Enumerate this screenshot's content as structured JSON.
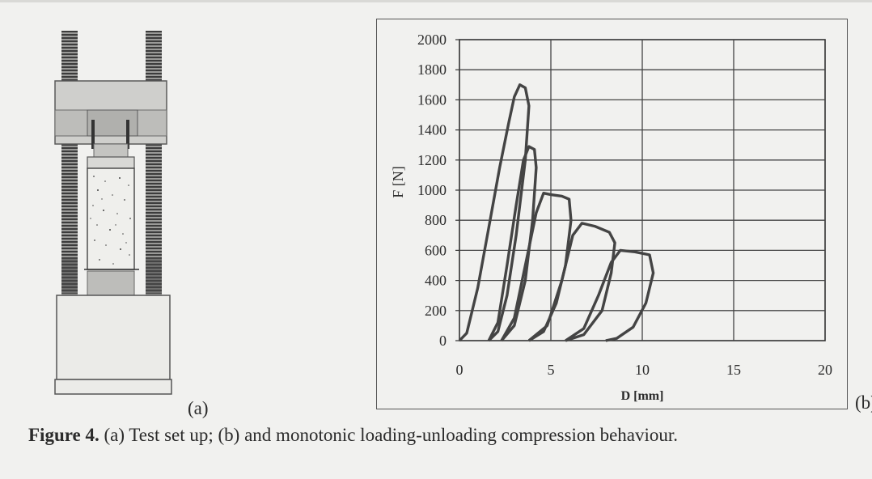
{
  "figure": {
    "panel_a_label": "(a)",
    "panel_b_label": "(b)",
    "caption_lead": "Figure 4.",
    "caption_text": " (a) Test set up; (b) and monotonic loading-unloading compression behaviour."
  },
  "chart_data": {
    "type": "line",
    "title": "",
    "xlabel": "D [mm]",
    "ylabel": "F [N]",
    "xlim": [
      0,
      20
    ],
    "ylim": [
      0,
      2000
    ],
    "xticks": [
      0,
      5,
      10,
      15,
      20
    ],
    "yticks": [
      0,
      200,
      400,
      600,
      800,
      1000,
      1200,
      1400,
      1600,
      1800,
      2000
    ],
    "grid": true,
    "line_color": "#444444",
    "series": [
      {
        "loops": [
          {
            "loading": [
              [
                0,
                0
              ],
              [
                0.4,
                50
              ],
              [
                1.0,
                350
              ],
              [
                1.6,
                750
              ],
              [
                2.2,
                1150
              ],
              [
                2.7,
                1450
              ],
              [
                3.0,
                1620
              ],
              [
                3.3,
                1700
              ],
              [
                3.6,
                1680
              ],
              [
                3.8,
                1560
              ]
            ],
            "unloading": [
              [
                3.8,
                1560
              ],
              [
                3.6,
                1200
              ],
              [
                3.1,
                700
              ],
              [
                2.6,
                300
              ],
              [
                2.1,
                60
              ],
              [
                1.6,
                0
              ]
            ]
          },
          {
            "loading": [
              [
                1.6,
                0
              ],
              [
                2.1,
                120
              ],
              [
                2.6,
                500
              ],
              [
                3.1,
                900
              ],
              [
                3.5,
                1200
              ],
              [
                3.8,
                1290
              ],
              [
                4.1,
                1270
              ],
              [
                4.2,
                1150
              ]
            ],
            "unloading": [
              [
                4.2,
                1150
              ],
              [
                4.0,
                800
              ],
              [
                3.6,
                400
              ],
              [
                3.0,
                100
              ],
              [
                2.3,
                0
              ]
            ]
          },
          {
            "loading": [
              [
                2.3,
                0
              ],
              [
                3.0,
                150
              ],
              [
                3.6,
                500
              ],
              [
                4.2,
                850
              ],
              [
                4.6,
                980
              ],
              [
                5.0,
                970
              ],
              [
                5.6,
                960
              ],
              [
                6.0,
                940
              ],
              [
                6.1,
                800
              ]
            ],
            "unloading": [
              [
                6.1,
                800
              ],
              [
                5.8,
                500
              ],
              [
                5.3,
                250
              ],
              [
                4.6,
                60
              ],
              [
                3.8,
                0
              ]
            ]
          },
          {
            "loading": [
              [
                3.8,
                0
              ],
              [
                4.8,
                100
              ],
              [
                5.6,
                400
              ],
              [
                6.2,
                700
              ],
              [
                6.7,
                780
              ],
              [
                7.4,
                760
              ],
              [
                8.2,
                720
              ],
              [
                8.5,
                650
              ]
            ],
            "unloading": [
              [
                8.5,
                650
              ],
              [
                8.3,
                450
              ],
              [
                7.8,
                200
              ],
              [
                6.8,
                40
              ],
              [
                5.8,
                0
              ]
            ]
          },
          {
            "loading": [
              [
                5.8,
                0
              ],
              [
                6.8,
                80
              ],
              [
                7.6,
                300
              ],
              [
                8.3,
                520
              ],
              [
                8.8,
                600
              ],
              [
                9.6,
                590
              ],
              [
                10.4,
                570
              ],
              [
                10.6,
                450
              ]
            ],
            "unloading": [
              [
                10.6,
                450
              ],
              [
                10.2,
                250
              ],
              [
                9.5,
                90
              ],
              [
                8.6,
                15
              ],
              [
                8.0,
                0
              ]
            ]
          }
        ]
      }
    ]
  }
}
